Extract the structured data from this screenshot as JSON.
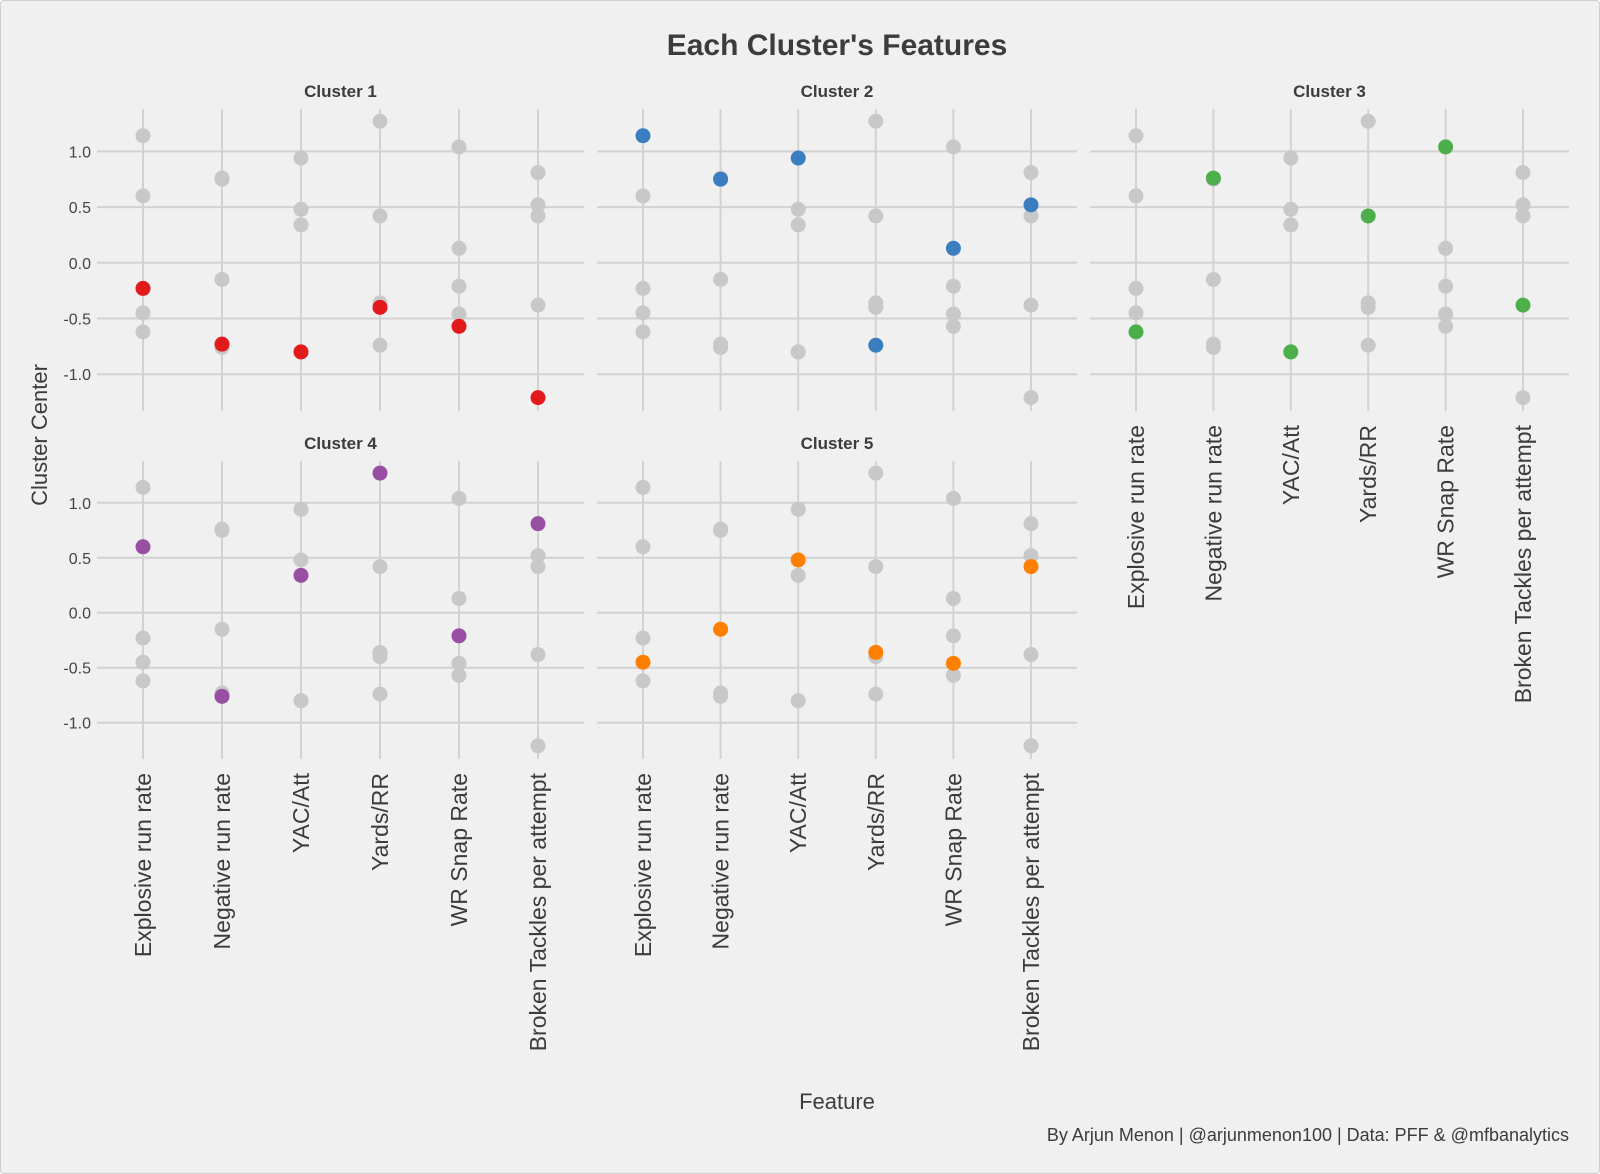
{
  "chart_data": {
    "type": "scatter",
    "title": "Each Cluster's Features",
    "xlabel": "Feature",
    "ylabel": "Cluster Center",
    "caption": "By Arjun Menon | @arjunmenon100 | Data: PFF & @mfbanalytics",
    "categories": [
      "Explosive run rate",
      "Negative run rate",
      "YAC/Att",
      "Yards/RR",
      "WR Snap Rate",
      "Broken Tackles per attempt"
    ],
    "yticks": [
      "1.0",
      "0.5",
      "0.0",
      "-0.5",
      "-1.0"
    ],
    "ytick_values": [
      1.0,
      0.5,
      0.0,
      -0.5,
      -1.0
    ],
    "ylim": [
      -1.33,
      1.38
    ],
    "grid": true,
    "series": [
      {
        "name": "Cluster 1",
        "color": "#e31a1c",
        "values": [
          -0.23,
          -0.73,
          -0.8,
          -0.4,
          -0.57,
          -1.21
        ]
      },
      {
        "name": "Cluster 2",
        "color": "#3a7ebf",
        "values": [
          1.14,
          0.75,
          0.94,
          -0.74,
          0.13,
          0.52
        ]
      },
      {
        "name": "Cluster 3",
        "color": "#4daf4a",
        "values": [
          -0.62,
          0.76,
          -0.8,
          0.42,
          1.04,
          -0.38
        ]
      },
      {
        "name": "Cluster 4",
        "color": "#984ea3",
        "values": [
          0.6,
          -0.76,
          0.34,
          1.27,
          -0.21,
          0.81
        ]
      },
      {
        "name": "Cluster 5",
        "color": "#ff7f00",
        "values": [
          -0.45,
          -0.15,
          0.48,
          -0.36,
          -0.46,
          0.42
        ]
      }
    ],
    "background_color": "#c8c8c8"
  }
}
